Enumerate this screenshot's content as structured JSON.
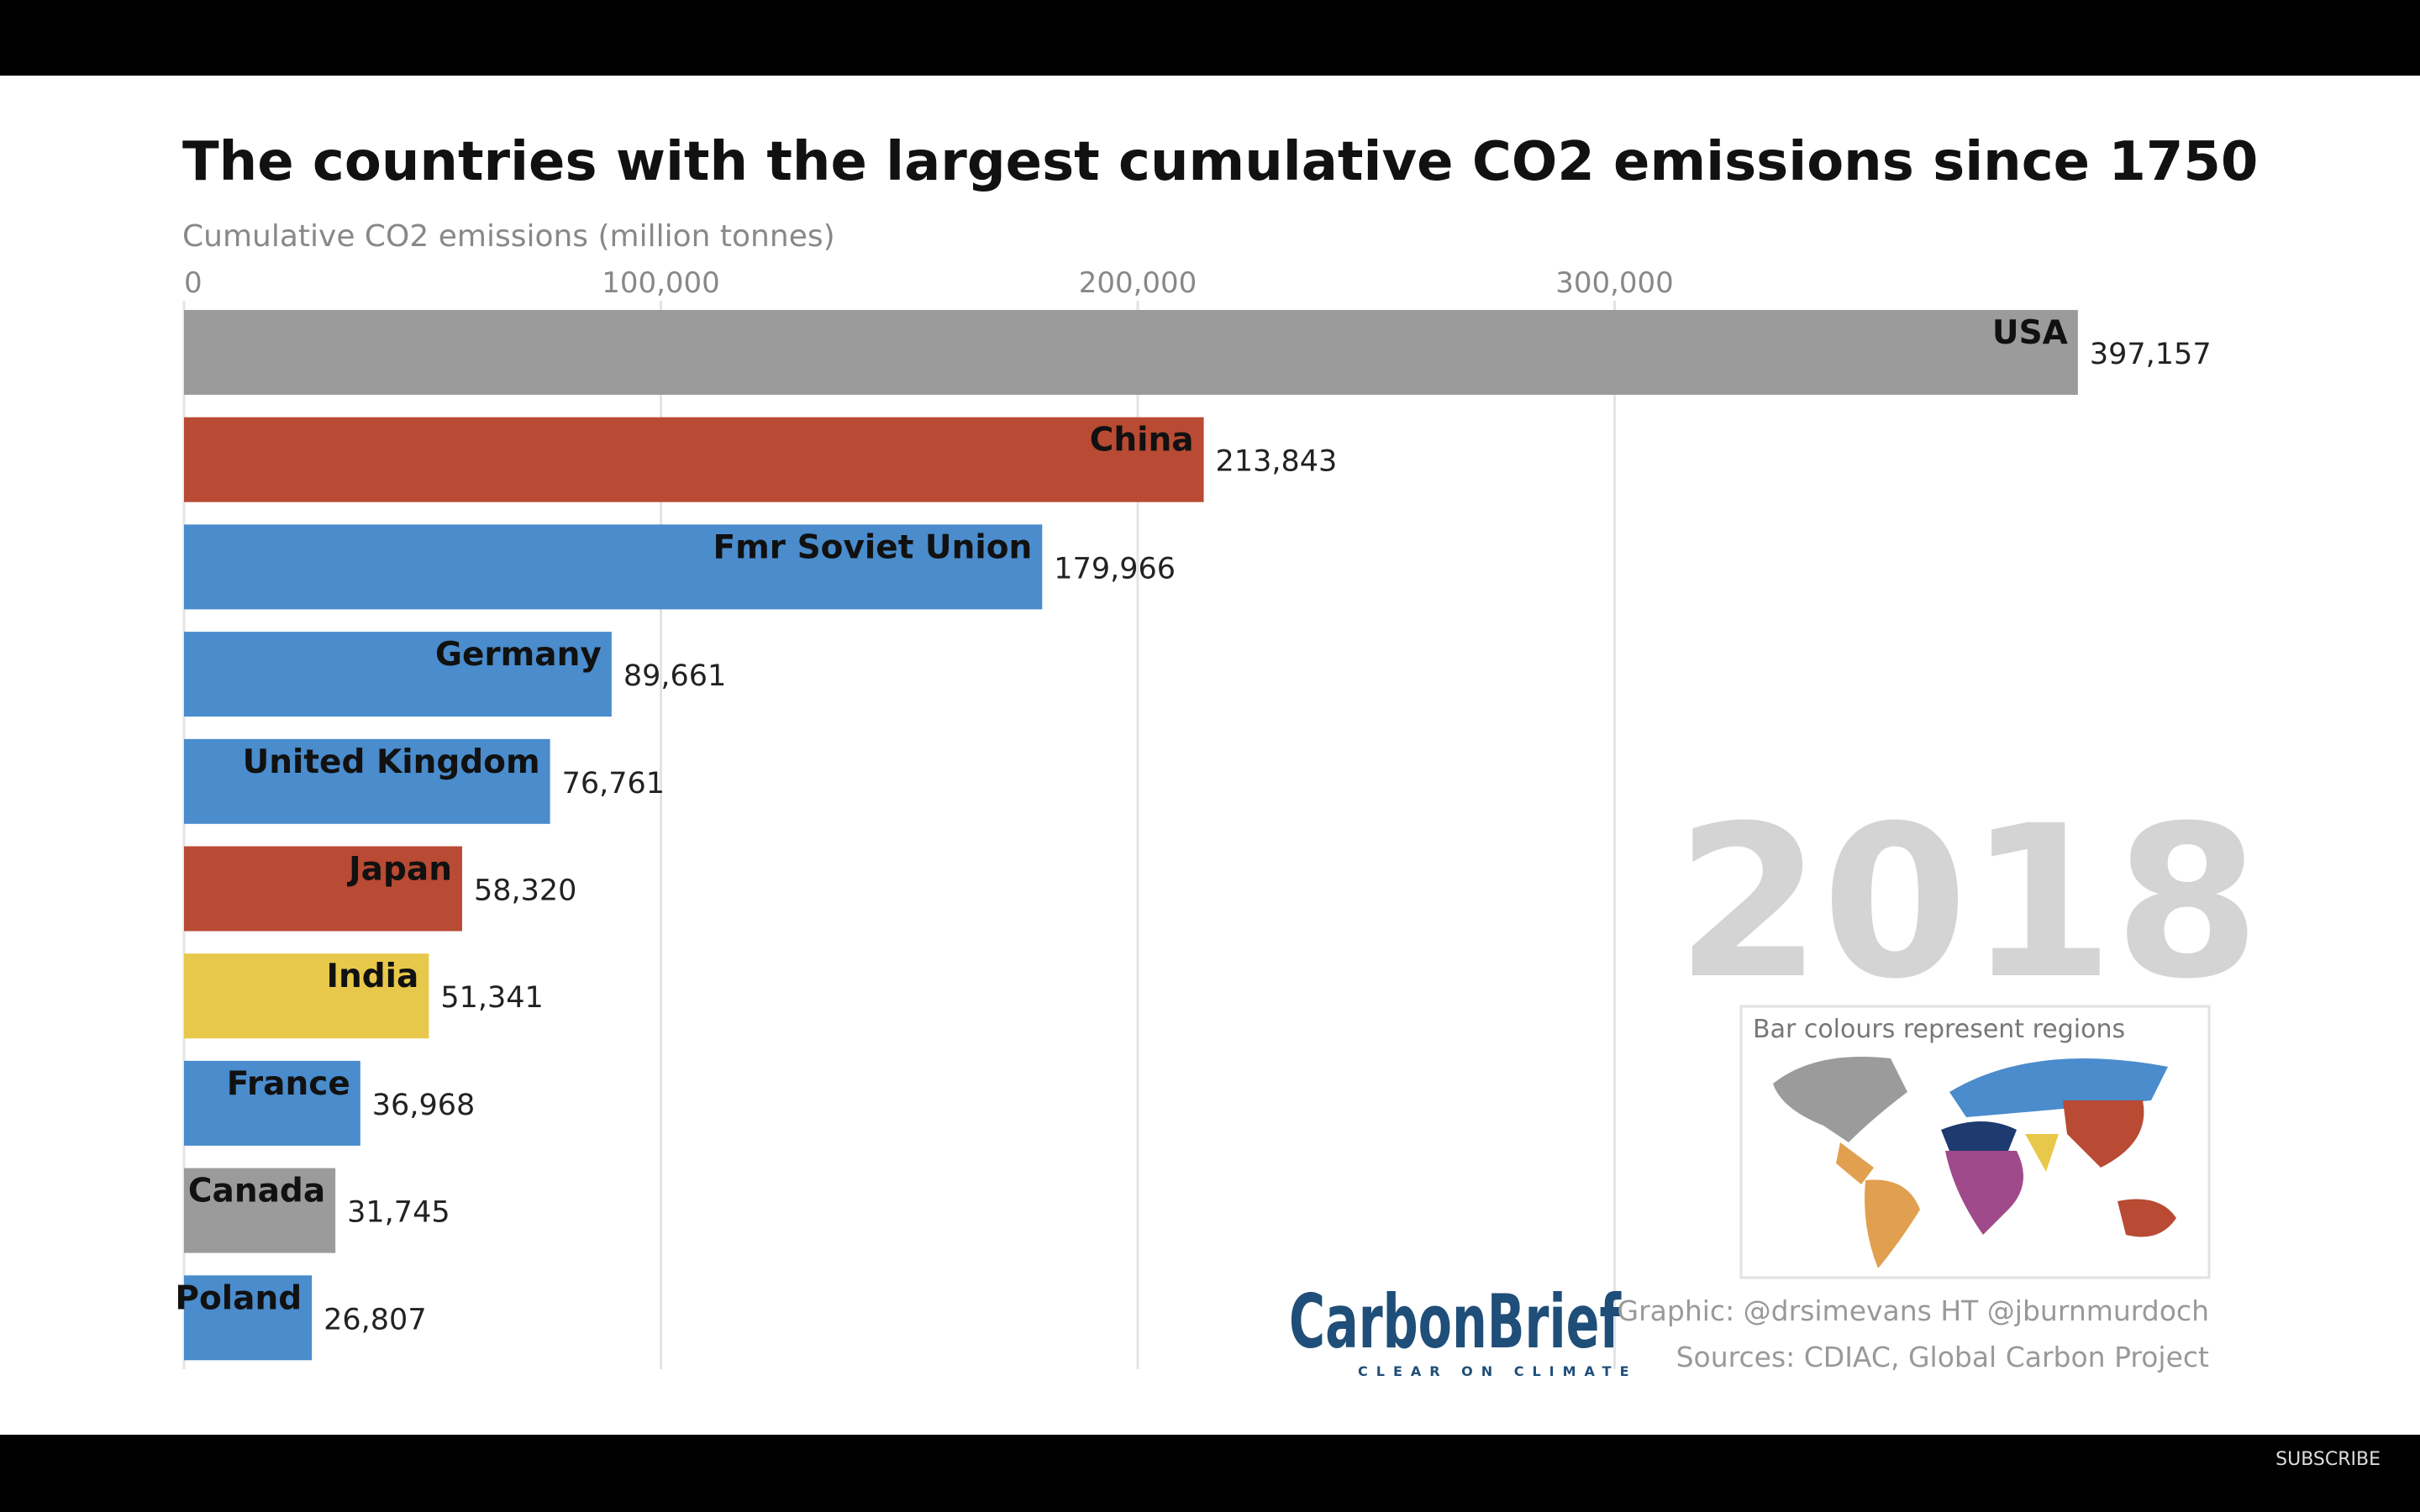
{
  "chart_data": {
    "type": "hbar",
    "title": "The countries with the largest cumulative CO2 emissions since 1750",
    "x_label": "Cumulative CO2 emissions (million tonnes)",
    "categories": [
      "USA",
      "China",
      "Fmr Soviet Union",
      "Germany",
      "United Kingdom",
      "Japan",
      "India",
      "France",
      "Canada",
      "Poland"
    ],
    "values": [
      397157,
      213843,
      179966,
      89661,
      76761,
      58320,
      51341,
      36968,
      31745,
      26807
    ],
    "value_labels": [
      "397,157",
      "213,843",
      "179,966",
      "89,661",
      "76,761",
      "58,320",
      "51,341",
      "36,968",
      "31,745",
      "26,807"
    ],
    "colors": [
      "#9b9b9b",
      "#b94a33",
      "#4a8ccc",
      "#4a8ccc",
      "#4a8ccc",
      "#b94a33",
      "#e8c84a",
      "#4a8ccc",
      "#9b9b9b",
      "#4a8ccc"
    ],
    "xlim": [
      0,
      400000
    ],
    "xticks": [
      0,
      {
        "value": 100000,
        "label": "100,000"
      },
      {
        "value": 200000,
        "label": "200,000"
      },
      {
        "value": 300000,
        "label": "300,000"
      }
    ],
    "grid": true,
    "year": "2018",
    "legend_note": "Bar colours represent regions",
    "brand": "CarbonBrief",
    "tagline": "CLEAR ON CLIMATE",
    "credit": "Graphic: @drsimevans HT @jburnmurdoch",
    "sources": "Sources: CDIAC, Global Carbon Project"
  },
  "subscribe_button": "SUBSCRIBE"
}
